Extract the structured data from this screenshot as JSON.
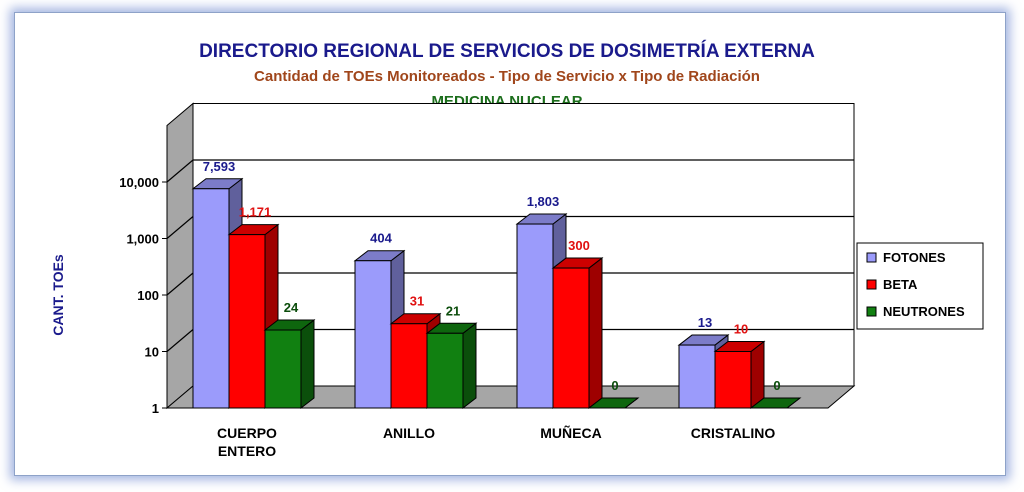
{
  "chart_data": {
    "type": "bar",
    "title": "DIRECTORIO REGIONAL DE SERVICIOS DE DOSIMETRÍA EXTERNA",
    "subtitle": "Cantidad de TOEs Monitoreados - Tipo de Servicio x Tipo de Radiación",
    "subtitle2": "MEDICINA NUCLEAR",
    "ylabel": "CANT. TOEs",
    "yscale": "log",
    "ylim": [
      1,
      100000
    ],
    "ytick_values": [
      1,
      10,
      100,
      1000,
      10000
    ],
    "ytick_labels": [
      "1",
      "10",
      "100",
      "1,000",
      "10,000"
    ],
    "categories": [
      {
        "line1": "CUERPO",
        "line2": "ENTERO"
      },
      {
        "line1": "ANILLO",
        "line2": ""
      },
      {
        "line1": "MUÑECA",
        "line2": ""
      },
      {
        "line1": "CRISTALINO",
        "line2": ""
      }
    ],
    "series": [
      {
        "name": "FOTONES",
        "values": [
          7593,
          404,
          1803,
          13
        ],
        "labels": [
          "7,593",
          "404",
          "1,803",
          "13"
        ],
        "color": "#9b9bfb",
        "label_color": "#1a1a8c"
      },
      {
        "name": "BETA",
        "values": [
          1171,
          31,
          300,
          10
        ],
        "labels": [
          "1,171",
          "31",
          "300",
          "10"
        ],
        "color": "#ff0000",
        "label_color": "#e01010"
      },
      {
        "name": "NEUTRONES",
        "values": [
          24,
          21,
          0,
          0
        ],
        "labels": [
          "24",
          "21",
          "0",
          "0"
        ],
        "color": "#118011",
        "label_color": "#0b4d0b"
      }
    ],
    "legend_position": "right",
    "grid": true
  }
}
